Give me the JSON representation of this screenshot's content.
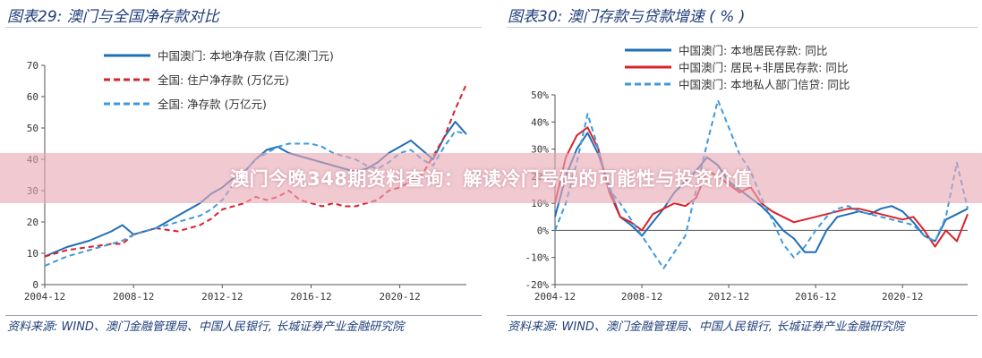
{
  "left": {
    "title": "图表29:  澳门与全国净存款对比",
    "source": "资料来源:  WIND、澳门金融管理局、中国人民银行, 长城证券产业金融研究院"
  },
  "right": {
    "title": "图表30:  澳门存款与贷款增速 ( % )",
    "source": "资料来源:  WIND、澳门金融管理局、中国人民银行, 长城证券产业金融研究院"
  },
  "banner": "澳门今晚348期资料查询：解读冷门号码的可能性与投资价值",
  "colors": {
    "blue": "#1f6fb5",
    "red": "#d9232b",
    "ltblue": "#3d9ae0"
  },
  "chart_data": [
    {
      "type": "line",
      "xtick_labels": [
        "2004-12",
        "2008-12",
        "2012-12",
        "2016-12",
        "2020-12"
      ],
      "xlim": [
        "2004-12",
        "2023-12"
      ],
      "ylim": [
        0,
        70
      ],
      "ytick_labels": [
        "0",
        "10",
        "20",
        "30",
        "40",
        "50",
        "60",
        "70"
      ],
      "legend_position": "top-left",
      "series": [
        {
          "name": "中国澳门: 本地净存款 (百亿澳门元)",
          "color": "#1f6fb5",
          "style": "solid",
          "points": [
            [
              "2004-12",
              9
            ],
            [
              "2005-12",
              12
            ],
            [
              "2006-12",
              14
            ],
            [
              "2007-12",
              17
            ],
            [
              "2008-06",
              19
            ],
            [
              "2008-12",
              16
            ],
            [
              "2009-06",
              17
            ],
            [
              "2009-12",
              18
            ],
            [
              "2010-06",
              20
            ],
            [
              "2010-12",
              22
            ],
            [
              "2011-06",
              24
            ],
            [
              "2011-12",
              26
            ],
            [
              "2012-06",
              29
            ],
            [
              "2012-12",
              31
            ],
            [
              "2013-06",
              34
            ],
            [
              "2013-12",
              36
            ],
            [
              "2014-06",
              40
            ],
            [
              "2014-12",
              43
            ],
            [
              "2015-06",
              44
            ],
            [
              "2015-12",
              42
            ],
            [
              "2016-06",
              41
            ],
            [
              "2016-12",
              40
            ],
            [
              "2017-06",
              39
            ],
            [
              "2017-12",
              38
            ],
            [
              "2018-06",
              37
            ],
            [
              "2018-12",
              36
            ],
            [
              "2019-06",
              37
            ],
            [
              "2019-12",
              39
            ],
            [
              "2020-06",
              42
            ],
            [
              "2020-12",
              44
            ],
            [
              "2021-06",
              46
            ],
            [
              "2021-12",
              43
            ],
            [
              "2022-06",
              40
            ],
            [
              "2022-12",
              47
            ],
            [
              "2023-06",
              52
            ],
            [
              "2023-12",
              48
            ]
          ]
        },
        {
          "name": "全国: 住户净存款 (万亿元)",
          "color": "#d9232b",
          "style": "dashed",
          "points": [
            [
              "2004-12",
              9
            ],
            [
              "2005-12",
              11
            ],
            [
              "2006-12",
              12
            ],
            [
              "2007-12",
              13
            ],
            [
              "2008-06",
              13
            ],
            [
              "2008-12",
              16
            ],
            [
              "2009-12",
              18
            ],
            [
              "2010-12",
              17
            ],
            [
              "2011-12",
              19
            ],
            [
              "2012-06",
              21
            ],
            [
              "2012-12",
              24
            ],
            [
              "2013-12",
              26
            ],
            [
              "2014-06",
              28
            ],
            [
              "2014-12",
              27
            ],
            [
              "2015-06",
              28
            ],
            [
              "2015-12",
              30
            ],
            [
              "2016-06",
              27
            ],
            [
              "2016-12",
              26
            ],
            [
              "2017-06",
              25
            ],
            [
              "2017-12",
              26
            ],
            [
              "2018-06",
              25
            ],
            [
              "2018-12",
              25
            ],
            [
              "2019-06",
              26
            ],
            [
              "2019-12",
              27
            ],
            [
              "2020-06",
              30
            ],
            [
              "2020-12",
              31
            ],
            [
              "2021-06",
              33
            ],
            [
              "2021-12",
              35
            ],
            [
              "2022-06",
              41
            ],
            [
              "2022-12",
              47
            ],
            [
              "2023-06",
              56
            ],
            [
              "2023-12",
              64
            ]
          ]
        },
        {
          "name": "全国: 净存款 (万亿元)",
          "color": "#3d9ae0",
          "style": "dashed",
          "points": [
            [
              "2004-12",
              6
            ],
            [
              "2005-12",
              9
            ],
            [
              "2006-12",
              11
            ],
            [
              "2007-12",
              13
            ],
            [
              "2008-06",
              14
            ],
            [
              "2008-12",
              16
            ],
            [
              "2009-12",
              18
            ],
            [
              "2010-12",
              20
            ],
            [
              "2011-12",
              22
            ],
            [
              "2012-06",
              24
            ],
            [
              "2012-12",
              27
            ],
            [
              "2013-06",
              32
            ],
            [
              "2013-12",
              36
            ],
            [
              "2014-06",
              40
            ],
            [
              "2014-12",
              42
            ],
            [
              "2015-06",
              44
            ],
            [
              "2015-12",
              45
            ],
            [
              "2016-06",
              45
            ],
            [
              "2016-12",
              45
            ],
            [
              "2017-06",
              44
            ],
            [
              "2017-12",
              42
            ],
            [
              "2018-06",
              41
            ],
            [
              "2018-12",
              40
            ],
            [
              "2019-06",
              38
            ],
            [
              "2019-12",
              37
            ],
            [
              "2020-06",
              39
            ],
            [
              "2020-12",
              42
            ],
            [
              "2021-06",
              43
            ],
            [
              "2021-12",
              40
            ],
            [
              "2022-06",
              38
            ],
            [
              "2022-12",
              44
            ],
            [
              "2023-06",
              49
            ],
            [
              "2023-12",
              48
            ]
          ]
        }
      ]
    },
    {
      "type": "line",
      "xtick_labels": [
        "2004-12",
        "2008-12",
        "2012-12",
        "2016-12",
        "2020-12"
      ],
      "xlim": [
        "2004-12",
        "2023-12"
      ],
      "ylim": [
        -20,
        50
      ],
      "ytick_labels": [
        "-20%",
        "-10%",
        "0%",
        "10%",
        "20%",
        "30%",
        "40%",
        "50%"
      ],
      "legend_position": "top",
      "series": [
        {
          "name": "中国澳门: 本地居民存款: 同比",
          "color": "#1f6fb5",
          "style": "solid",
          "points": [
            [
              "2004-12",
              5
            ],
            [
              "2005-06",
              20
            ],
            [
              "2005-12",
              30
            ],
            [
              "2006-06",
              36
            ],
            [
              "2006-12",
              28
            ],
            [
              "2007-06",
              16
            ],
            [
              "2007-12",
              5
            ],
            [
              "2008-06",
              2
            ],
            [
              "2008-12",
              -2
            ],
            [
              "2009-06",
              3
            ],
            [
              "2009-12",
              8
            ],
            [
              "2010-06",
              14
            ],
            [
              "2010-12",
              18
            ],
            [
              "2011-06",
              22
            ],
            [
              "2011-12",
              27
            ],
            [
              "2012-06",
              24
            ],
            [
              "2012-12",
              18
            ],
            [
              "2013-06",
              15
            ],
            [
              "2013-12",
              12
            ],
            [
              "2014-06",
              9
            ],
            [
              "2014-12",
              5
            ],
            [
              "2015-06",
              0
            ],
            [
              "2015-12",
              -3
            ],
            [
              "2016-06",
              -8
            ],
            [
              "2016-12",
              -8
            ],
            [
              "2017-06",
              0
            ],
            [
              "2017-12",
              5
            ],
            [
              "2018-06",
              6
            ],
            [
              "2018-12",
              7
            ],
            [
              "2019-06",
              6
            ],
            [
              "2019-12",
              8
            ],
            [
              "2020-06",
              9
            ],
            [
              "2020-12",
              7
            ],
            [
              "2021-06",
              3
            ],
            [
              "2021-12",
              -2
            ],
            [
              "2022-06",
              -4
            ],
            [
              "2022-12",
              4
            ],
            [
              "2023-06",
              6
            ],
            [
              "2023-12",
              8
            ]
          ]
        },
        {
          "name": "中国澳门: 居民+非居民存款: 同比",
          "color": "#d9232b",
          "style": "solid",
          "points": [
            [
              "2004-12",
              10
            ],
            [
              "2005-06",
              27
            ],
            [
              "2005-12",
              35
            ],
            [
              "2006-06",
              38
            ],
            [
              "2006-12",
              30
            ],
            [
              "2007-06",
              14
            ],
            [
              "2007-12",
              5
            ],
            [
              "2008-06",
              3
            ],
            [
              "2008-12",
              0
            ],
            [
              "2009-06",
              6
            ],
            [
              "2009-12",
              8
            ],
            [
              "2010-06",
              10
            ],
            [
              "2010-12",
              9
            ],
            [
              "2011-06",
              12
            ],
            [
              "2011-12",
              22
            ],
            [
              "2012-06",
              20
            ],
            [
              "2012-12",
              17
            ],
            [
              "2013-06",
              14
            ],
            [
              "2013-12",
              16
            ],
            [
              "2014-06",
              10
            ],
            [
              "2014-12",
              7
            ],
            [
              "2015-06",
              5
            ],
            [
              "2015-12",
              3
            ],
            [
              "2016-06",
              4
            ],
            [
              "2016-12",
              5
            ],
            [
              "2017-06",
              6
            ],
            [
              "2017-12",
              7
            ],
            [
              "2018-06",
              8
            ],
            [
              "2018-12",
              8
            ],
            [
              "2019-06",
              7
            ],
            [
              "2019-12",
              6
            ],
            [
              "2020-06",
              5
            ],
            [
              "2020-12",
              4
            ],
            [
              "2021-06",
              5
            ],
            [
              "2021-12",
              0
            ],
            [
              "2022-06",
              -6
            ],
            [
              "2022-12",
              0
            ],
            [
              "2023-06",
              -4
            ],
            [
              "2023-12",
              6
            ]
          ]
        },
        {
          "name": "中国澳门: 本地私人部门信贷: 同比",
          "color": "#3d9ae0",
          "style": "dashed",
          "points": [
            [
              "2004-12",
              0
            ],
            [
              "2005-06",
              10
            ],
            [
              "2005-12",
              25
            ],
            [
              "2006-06",
              43
            ],
            [
              "2006-12",
              30
            ],
            [
              "2007-06",
              15
            ],
            [
              "2007-12",
              10
            ],
            [
              "2008-06",
              4
            ],
            [
              "2008-12",
              -2
            ],
            [
              "2009-06",
              -8
            ],
            [
              "2009-12",
              -14
            ],
            [
              "2010-06",
              -8
            ],
            [
              "2010-12",
              -2
            ],
            [
              "2011-06",
              15
            ],
            [
              "2011-12",
              32
            ],
            [
              "2012-06",
              48
            ],
            [
              "2012-12",
              38
            ],
            [
              "2013-06",
              28
            ],
            [
              "2013-12",
              22
            ],
            [
              "2014-06",
              12
            ],
            [
              "2014-12",
              4
            ],
            [
              "2015-06",
              -5
            ],
            [
              "2015-12",
              -10
            ],
            [
              "2016-06",
              -6
            ],
            [
              "2016-12",
              0
            ],
            [
              "2017-06",
              5
            ],
            [
              "2017-12",
              8
            ],
            [
              "2018-06",
              9
            ],
            [
              "2018-12",
              7
            ],
            [
              "2019-06",
              6
            ],
            [
              "2019-12",
              5
            ],
            [
              "2020-06",
              4
            ],
            [
              "2020-12",
              3
            ],
            [
              "2021-06",
              2
            ],
            [
              "2021-12",
              -2
            ],
            [
              "2022-06",
              -4
            ],
            [
              "2022-12",
              5
            ],
            [
              "2023-06",
              25
            ],
            [
              "2023-12",
              8
            ]
          ]
        }
      ]
    }
  ]
}
